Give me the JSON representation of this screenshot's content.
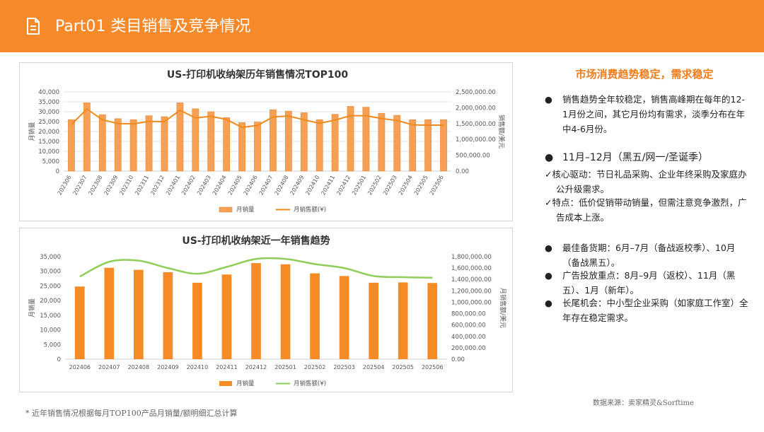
{
  "header": {
    "title": "Part01 类目销售及竞争情况",
    "icon": "document-icon"
  },
  "chart_data": [
    {
      "type": "bar",
      "title": "US-打印机收纳架历年销售情况TOP100",
      "categories": [
        "202306",
        "202307",
        "202308",
        "202309",
        "202310",
        "202311",
        "202312",
        "202401",
        "202402",
        "202403",
        "202404",
        "202405",
        "202406",
        "202407",
        "202408",
        "202409",
        "202410",
        "202411",
        "202412",
        "202501",
        "202502",
        "202503",
        "202504",
        "202505",
        "202506"
      ],
      "series": [
        {
          "name": "月销量",
          "kind": "bar",
          "axis": "left",
          "color": "#f5a055",
          "values": [
            26000,
            34500,
            28500,
            26500,
            26000,
            28000,
            27500,
            34500,
            31500,
            30000,
            27000,
            24500,
            24800,
            31000,
            30300,
            29500,
            26000,
            28700,
            32700,
            32300,
            29200,
            28200,
            26000,
            26000,
            26000
          ]
        },
        {
          "name": "月销售额(¥)",
          "kind": "line",
          "axis": "right",
          "color": "#f08a1e",
          "values": [
            1470000,
            1960000,
            1620000,
            1500000,
            1490000,
            1570000,
            1560000,
            1920000,
            1680000,
            1730000,
            1630000,
            1380000,
            1440000,
            1710000,
            1740000,
            1620000,
            1510000,
            1610000,
            1750000,
            1750000,
            1660000,
            1600000,
            1460000,
            1450000,
            1450000
          ]
        }
      ],
      "ylabel": "月销量",
      "ylabel2": "销售额/美元",
      "ylim": [
        0,
        40000
      ],
      "ylim2": [
        0,
        2500000
      ],
      "yticks": [
        "40,000",
        "35,000",
        "30,000",
        "25,000",
        "20,000",
        "15,000",
        "10,000",
        "5,000",
        "0"
      ],
      "yticks2": [
        "2,500,000.00",
        "2,000,000.00",
        "1,500,000.00",
        "1,000,000.00",
        "500,000.00",
        "0.00"
      ],
      "grid": true,
      "legend": "bottom"
    },
    {
      "type": "bar",
      "title": "US-打印机收纳架近一年销售趋势",
      "categories": [
        "202406",
        "202407",
        "202408",
        "202409",
        "202410",
        "202411",
        "202412",
        "202501",
        "202502",
        "202503",
        "202504",
        "202505",
        "202506"
      ],
      "series": [
        {
          "name": "月销量",
          "kind": "bar",
          "axis": "left",
          "color": "#f68a24",
          "values": [
            24800,
            31200,
            30500,
            29700,
            26100,
            28900,
            32800,
            32400,
            29300,
            28400,
            26100,
            26200,
            26000
          ]
        },
        {
          "name": "月销售额(¥)",
          "kind": "line",
          "axis": "right",
          "color": "#8fce58",
          "values": [
            1450000,
            1710000,
            1730000,
            1600000,
            1500000,
            1620000,
            1760000,
            1760000,
            1670000,
            1600000,
            1460000,
            1440000,
            1430000
          ]
        }
      ],
      "ylabel": "月销量",
      "ylabel2": "月销售额/美元",
      "ylim": [
        0,
        35000
      ],
      "ylim2": [
        0,
        1800000
      ],
      "yticks": [
        "35,000",
        "30,000",
        "25,000",
        "20,000",
        "15,000",
        "10,000",
        "5,000",
        "0"
      ],
      "yticks2": [
        "1,800,000.00",
        "1,600,000.00",
        "1,400,000.00",
        "1,200,000.00",
        "1,000,000.00",
        "800,000.00",
        "600,000.00",
        "400,000.00",
        "200,000.00",
        "0.00"
      ],
      "grid": false,
      "legend": "bottom"
    }
  ],
  "right": {
    "title": "市场消费趋势稳定，需求稳定",
    "b1": "销售趋势全年较稳定，销售高峰期在每年的12-1月份之间，其它月份均有需求，淡季分布在年中4-6月份。",
    "b2": "11月–12月（黑五/网一/圣诞季）",
    "c1": "核心驱动：节日礼品采购、企业年终采购及家庭办公升级需求。",
    "c2": "特点：低价促销带动销量，但需注意竞争激烈，广告成本上涨。",
    "b3": "最佳备货期：6月–7月（备战返校季）、10月（备战黑五）。",
    "b4": "广告投放重点：8月–9月（返校）、11月（黑五）、1月（新年）。",
    "b5": "长尾机会：中小型企业采购（如家庭工作室）全年存在稳定需求。",
    "bullet": "●",
    "check": "✓"
  },
  "source": "数据来源：卖家精灵&Sorftime",
  "footnote": "* 近年销售情况根据每月TOP100产品月销量/额明细汇总计算"
}
